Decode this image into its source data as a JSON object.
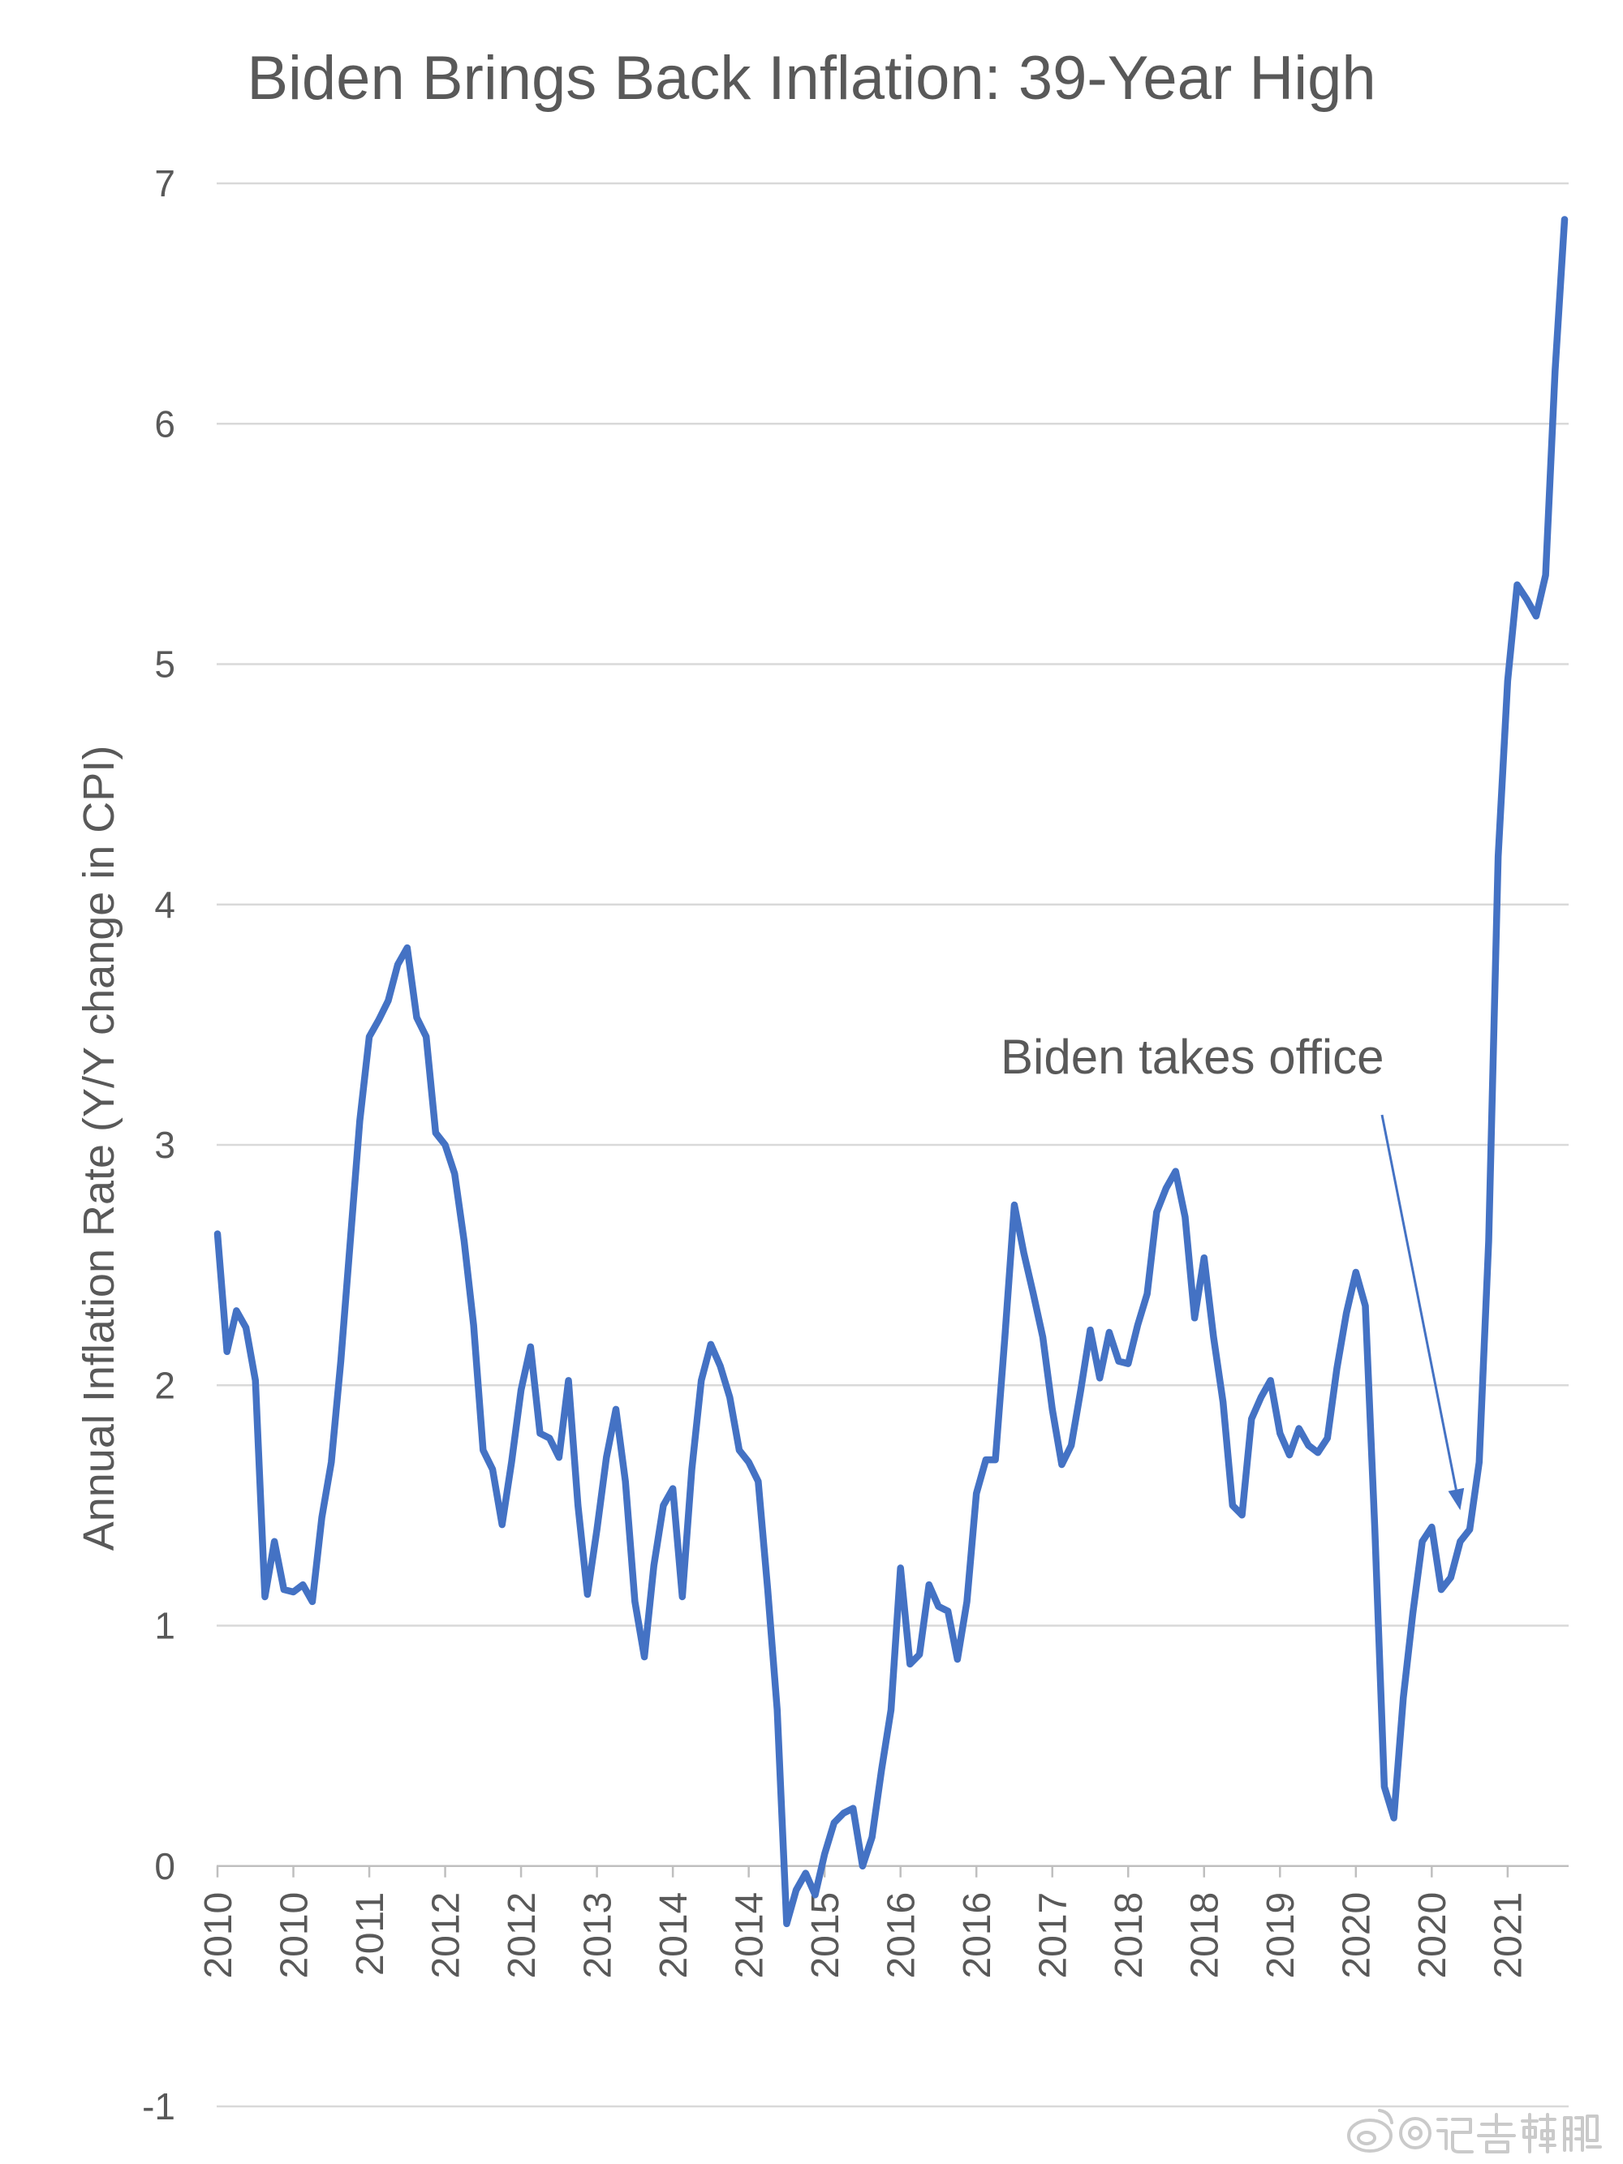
{
  "chart_data": {
    "type": "line",
    "title": "Biden Brings Back Inflation: 39-Year High",
    "ylabel": "Annual Inflation Rate (Y/Y change in CPI)",
    "ylim": [
      -1,
      7
    ],
    "y_ticks": [
      7,
      6,
      5,
      4,
      3,
      2,
      1,
      0,
      -1
    ],
    "x_tick_labels": [
      "2010",
      "2010",
      "2011",
      "2012",
      "2012",
      "2013",
      "2014",
      "2014",
      "2015",
      "2016",
      "2016",
      "2017",
      "2018",
      "2018",
      "2019",
      "2020",
      "2020",
      "2021"
    ],
    "grid": true,
    "legend": "none",
    "line_color": "#4472C4",
    "x": [
      "2010-01",
      "2010-02",
      "2010-03",
      "2010-04",
      "2010-05",
      "2010-06",
      "2010-07",
      "2010-08",
      "2010-09",
      "2010-10",
      "2010-11",
      "2010-12",
      "2011-01",
      "2011-02",
      "2011-03",
      "2011-04",
      "2011-05",
      "2011-06",
      "2011-07",
      "2011-08",
      "2011-09",
      "2011-10",
      "2011-11",
      "2011-12",
      "2012-01",
      "2012-02",
      "2012-03",
      "2012-04",
      "2012-05",
      "2012-06",
      "2012-07",
      "2012-08",
      "2012-09",
      "2012-10",
      "2012-11",
      "2012-12",
      "2013-01",
      "2013-02",
      "2013-03",
      "2013-04",
      "2013-05",
      "2013-06",
      "2013-07",
      "2013-08",
      "2013-09",
      "2013-10",
      "2013-11",
      "2013-12",
      "2014-01",
      "2014-02",
      "2014-03",
      "2014-04",
      "2014-05",
      "2014-06",
      "2014-07",
      "2014-08",
      "2014-09",
      "2014-10",
      "2014-11",
      "2014-12",
      "2015-01",
      "2015-02",
      "2015-03",
      "2015-04",
      "2015-05",
      "2015-06",
      "2015-07",
      "2015-08",
      "2015-09",
      "2015-10",
      "2015-11",
      "2015-12",
      "2016-01",
      "2016-02",
      "2016-03",
      "2016-04",
      "2016-05",
      "2016-06",
      "2016-07",
      "2016-08",
      "2016-09",
      "2016-10",
      "2016-11",
      "2016-12",
      "2017-01",
      "2017-02",
      "2017-03",
      "2017-04",
      "2017-05",
      "2017-06",
      "2017-07",
      "2017-08",
      "2017-09",
      "2017-10",
      "2017-11",
      "2017-12",
      "2018-01",
      "2018-02",
      "2018-03",
      "2018-04",
      "2018-05",
      "2018-06",
      "2018-07",
      "2018-08",
      "2018-09",
      "2018-10",
      "2018-11",
      "2018-12",
      "2019-01",
      "2019-02",
      "2019-03",
      "2019-04",
      "2019-05",
      "2019-06",
      "2019-07",
      "2019-08",
      "2019-09",
      "2019-10",
      "2019-11",
      "2019-12",
      "2020-01",
      "2020-02",
      "2020-03",
      "2020-04",
      "2020-05",
      "2020-06",
      "2020-07",
      "2020-08",
      "2020-09",
      "2020-10",
      "2020-11",
      "2020-12",
      "2021-01",
      "2021-02",
      "2021-03",
      "2021-04",
      "2021-05",
      "2021-06",
      "2021-07",
      "2021-08",
      "2021-09",
      "2021-10",
      "2021-11"
    ],
    "series": [
      {
        "values": [
          2.63,
          2.14,
          2.31,
          2.24,
          2.02,
          1.12,
          1.35,
          1.15,
          1.14,
          1.17,
          1.1,
          1.45,
          1.68,
          2.1,
          2.6,
          3.1,
          3.45,
          3.52,
          3.6,
          3.75,
          3.82,
          3.53,
          3.45,
          3.05,
          3.0,
          2.88,
          2.6,
          2.25,
          1.73,
          1.65,
          1.42,
          1.68,
          1.98,
          2.16,
          1.8,
          1.78,
          1.7,
          2.02,
          1.5,
          1.13,
          1.4,
          1.7,
          1.9,
          1.6,
          1.1,
          0.87,
          1.25,
          1.5,
          1.57,
          1.12,
          1.65,
          2.02,
          2.17,
          2.08,
          1.95,
          1.73,
          1.68,
          1.6,
          1.15,
          0.65,
          -0.24,
          -0.1,
          -0.03,
          -0.12,
          0.05,
          0.18,
          0.22,
          0.24,
          0.0,
          0.12,
          0.4,
          0.65,
          1.24,
          0.84,
          0.88,
          1.17,
          1.08,
          1.06,
          0.86,
          1.1,
          1.55,
          1.69,
          1.69,
          2.2,
          2.75,
          2.55,
          2.38,
          2.2,
          1.9,
          1.67,
          1.75,
          1.98,
          2.23,
          2.03,
          2.22,
          2.1,
          2.09,
          2.25,
          2.38,
          2.72,
          2.82,
          2.89,
          2.7,
          2.28,
          2.53,
          2.2,
          1.93,
          1.5,
          1.46,
          1.86,
          1.95,
          2.02,
          1.8,
          1.71,
          1.82,
          1.75,
          1.72,
          1.78,
          2.07,
          2.3,
          2.47,
          2.33,
          1.4,
          0.33,
          0.2,
          0.7,
          1.05,
          1.35,
          1.41,
          1.15,
          1.2,
          1.35,
          1.4,
          1.68,
          2.6,
          4.2,
          4.93,
          5.33,
          5.27,
          5.2,
          5.37,
          6.22,
          6.85
        ]
      }
    ],
    "annotations": [
      {
        "text": "Biden takes office",
        "arrow_to": {
          "x": "2020-12",
          "y": 1.48
        }
      }
    ]
  },
  "watermark": {
    "text": "@记者韩鹏",
    "icon": "weibo-logo-icon"
  }
}
